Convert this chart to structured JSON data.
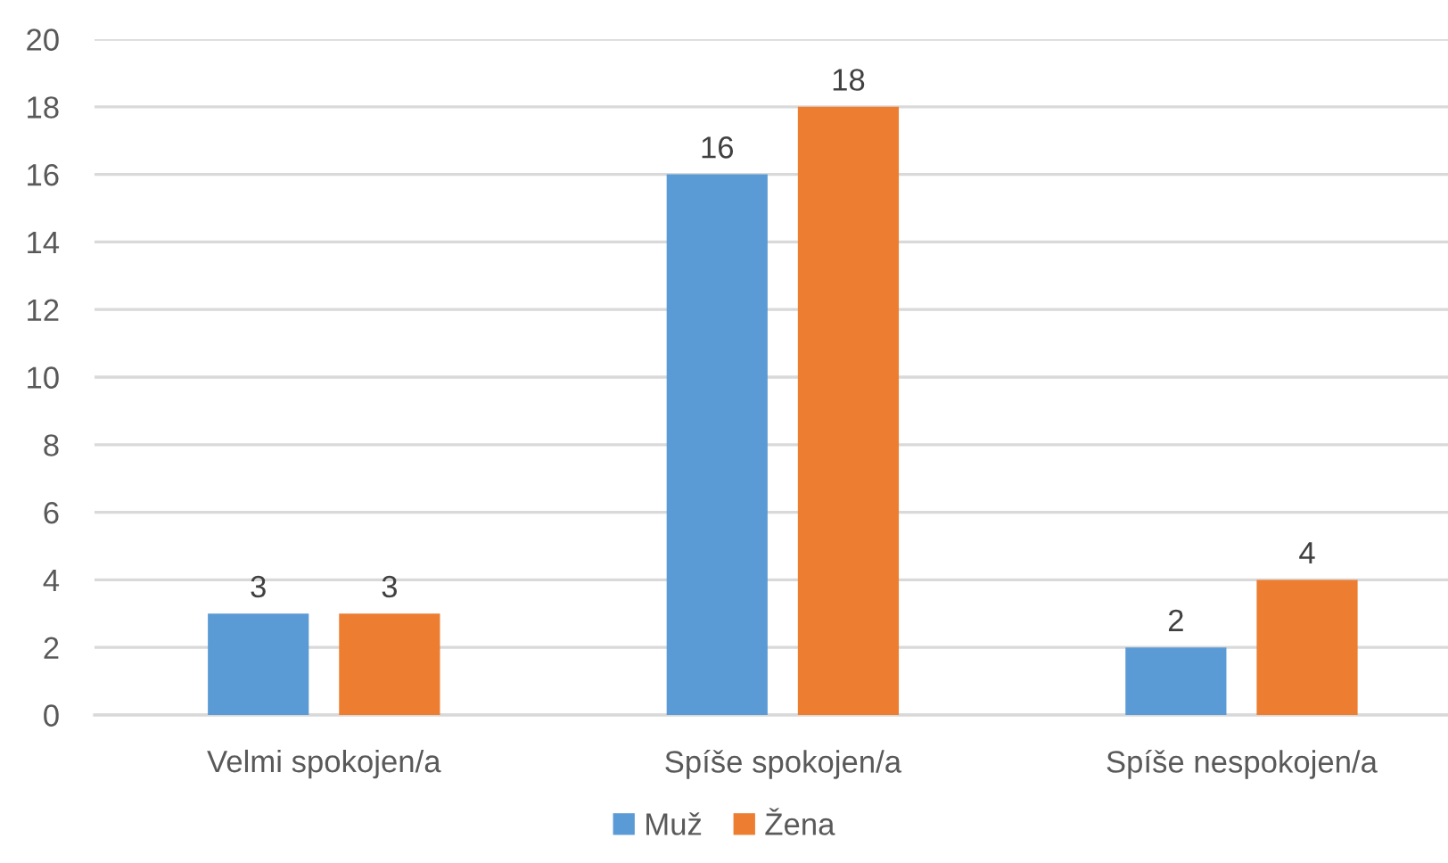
{
  "chart_data": {
    "type": "bar",
    "categories": [
      "Velmi spokojen/a",
      "Spíše spokojen/a",
      "Spíše nespokojen/a"
    ],
    "series": [
      {
        "name": "Muž",
        "color": "#5b9bd5",
        "values": [
          3,
          16,
          2
        ]
      },
      {
        "name": "Žena",
        "color": "#ed7d31",
        "values": [
          3,
          18,
          4
        ]
      }
    ],
    "ylim": [
      0,
      20
    ],
    "yticks": [
      0,
      2,
      4,
      6,
      8,
      10,
      12,
      14,
      16,
      18,
      20
    ],
    "grid": "y",
    "legend": "bottom",
    "data_labels": true
  }
}
